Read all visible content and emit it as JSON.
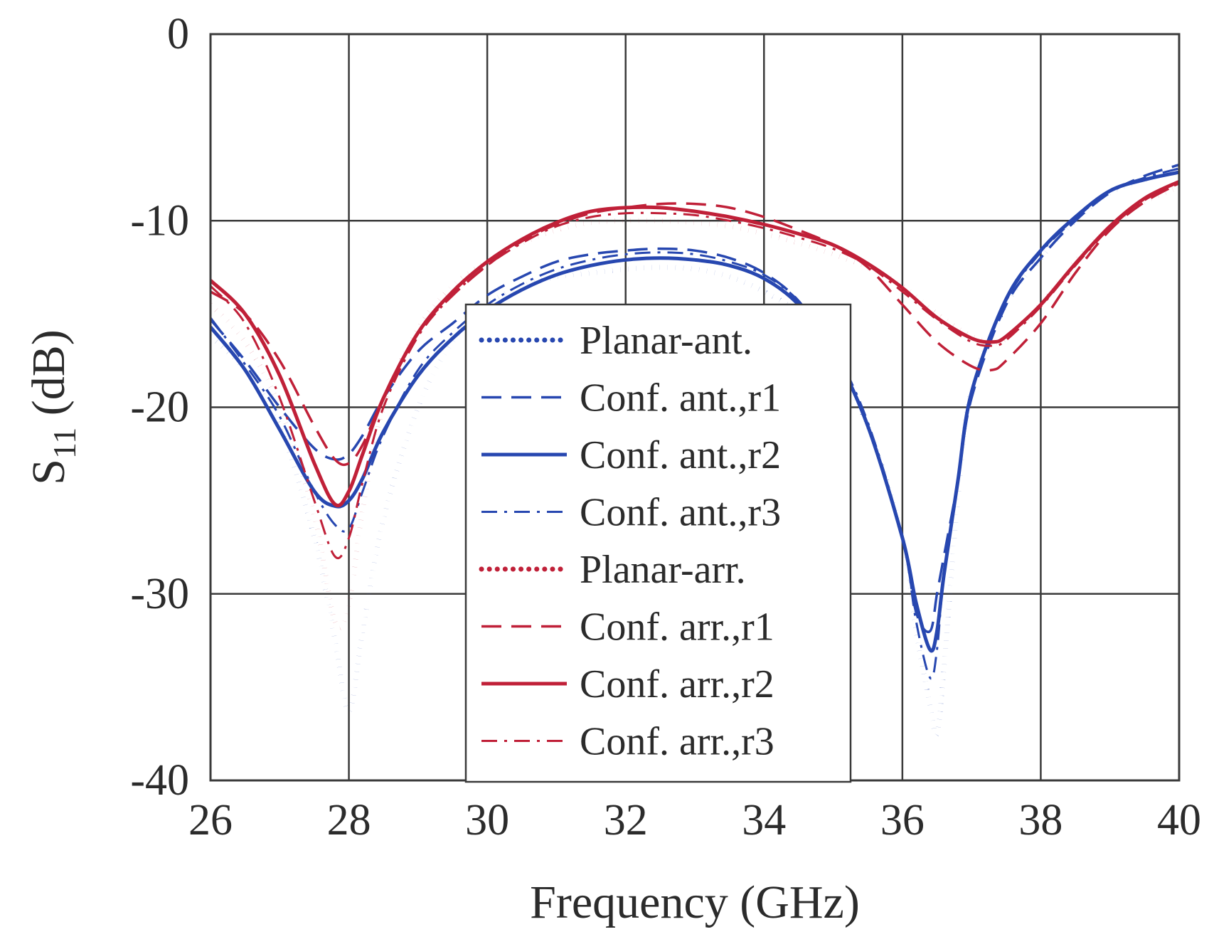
{
  "chart_data": {
    "type": "line",
    "title": "",
    "xlabel": "Frequency (GHz)",
    "ylabel": {
      "main": "S",
      "sub": "11",
      "unit": " (dB)"
    },
    "xlim": [
      26,
      40
    ],
    "ylim": [
      -40,
      0
    ],
    "xticks": [
      26,
      28,
      30,
      32,
      34,
      36,
      38,
      40
    ],
    "yticks": [
      0,
      -10,
      -20,
      -30,
      -40
    ],
    "ytick_labels": [
      "0",
      "-10",
      "-20",
      "-30",
      "-40"
    ],
    "grid": true,
    "legend_position": "center",
    "colors": {
      "blue": "#2747b0",
      "red": "#c02038"
    },
    "series": [
      {
        "name": "Planar-ant.",
        "color": "#2747b0",
        "dash": "dotted",
        "x": [
          26,
          26.5,
          27,
          27.5,
          27.8,
          28,
          28.2,
          28.5,
          29,
          29.5,
          30,
          30.5,
          31,
          31.5,
          32,
          32.5,
          33,
          33.5,
          34,
          34.5,
          35,
          35.5,
          36,
          36.2,
          36.4,
          36.5,
          36.6,
          36.8,
          37,
          37.5,
          38,
          38.5,
          39,
          39.5,
          40
        ],
        "y": [
          -16.2,
          -18,
          -21,
          -27,
          -32.5,
          -36.3,
          -32,
          -26,
          -20,
          -16.5,
          -14.5,
          -13.5,
          -13,
          -12.8,
          -12.6,
          -12.5,
          -12.6,
          -13,
          -13.8,
          -15,
          -17.5,
          -21,
          -27,
          -32,
          -36,
          -37.5,
          -34,
          -25,
          -19,
          -14.5,
          -12,
          -10,
          -8.5,
          -7.8,
          -7.3
        ]
      },
      {
        "name": "Conf. ant.,r1",
        "color": "#2747b0",
        "dash": "dashed",
        "x": [
          26,
          26.5,
          27,
          27.5,
          27.8,
          28,
          28.2,
          28.5,
          29,
          29.5,
          30,
          30.5,
          31,
          31.5,
          32,
          32.5,
          33,
          33.5,
          34,
          34.5,
          35,
          35.5,
          36,
          36.2,
          36.4,
          36.5,
          36.6,
          36.8,
          37,
          37.5,
          38,
          38.5,
          39,
          39.5,
          40
        ],
        "y": [
          -15.3,
          -17.5,
          -20,
          -22.2,
          -22.8,
          -22.5,
          -21.5,
          -19.5,
          -17,
          -15.5,
          -14,
          -13,
          -12.2,
          -11.8,
          -11.6,
          -11.5,
          -11.6,
          -12,
          -12.8,
          -14.3,
          -17,
          -21,
          -27,
          -31,
          -32,
          -30,
          -28,
          -24,
          -19.5,
          -14.5,
          -12,
          -10,
          -8.5,
          -7.6,
          -7
        ]
      },
      {
        "name": "Conf. ant.,r2",
        "color": "#2747b0",
        "dash": "solid",
        "x": [
          26,
          26.5,
          27,
          27.5,
          27.8,
          28,
          28.2,
          28.5,
          29,
          29.5,
          30,
          30.5,
          31,
          31.5,
          32,
          32.5,
          33,
          33.5,
          34,
          34.5,
          35,
          35.5,
          36,
          36.2,
          36.4,
          36.5,
          36.6,
          36.8,
          37,
          37.5,
          38,
          38.5,
          39,
          39.5,
          40
        ],
        "y": [
          -15.7,
          -18,
          -21.2,
          -24.5,
          -25.3,
          -25,
          -23.8,
          -21.3,
          -18.3,
          -16.3,
          -14.8,
          -13.7,
          -12.9,
          -12.4,
          -12.1,
          -12,
          -12.1,
          -12.4,
          -13.1,
          -14.5,
          -17,
          -21,
          -27,
          -30.5,
          -33,
          -32,
          -29,
          -24,
          -19.2,
          -14.2,
          -11.6,
          -9.8,
          -8.4,
          -7.8,
          -7.4
        ]
      },
      {
        "name": "Conf. ant.,r3",
        "color": "#2747b0",
        "dash": "dashdot",
        "x": [
          26,
          26.5,
          27,
          27.5,
          27.8,
          28,
          28.2,
          28.5,
          29,
          29.5,
          30,
          30.5,
          31,
          31.5,
          32,
          32.5,
          33,
          33.5,
          34,
          34.5,
          35,
          35.5,
          36,
          36.2,
          36.4,
          36.5,
          36.6,
          36.8,
          37,
          37.5,
          38,
          38.5,
          39,
          39.5,
          40
        ],
        "y": [
          -15.2,
          -17.7,
          -20.5,
          -24.5,
          -26.3,
          -26.5,
          -24.5,
          -21.5,
          -18,
          -16,
          -14.5,
          -13.4,
          -12.6,
          -12.1,
          -11.8,
          -11.7,
          -11.8,
          -12.2,
          -12.9,
          -14.3,
          -16.8,
          -20.8,
          -27,
          -31.5,
          -34.5,
          -33,
          -29,
          -24,
          -19.3,
          -14.3,
          -11.7,
          -9.9,
          -8.4,
          -7.7,
          -7.2
        ]
      },
      {
        "name": "Planar-arr.",
        "color": "#c02038",
        "dash": "dotted",
        "x": [
          26,
          26.5,
          27,
          27.5,
          27.8,
          28,
          28.2,
          28.5,
          29,
          29.5,
          30,
          30.5,
          31,
          31.5,
          32,
          32.5,
          33,
          33.5,
          34,
          34.5,
          35,
          35.5,
          36,
          36.5,
          37,
          37.3,
          37.5,
          38,
          38.5,
          39,
          39.5,
          40
        ],
        "y": [
          -14.5,
          -16.5,
          -20,
          -25.8,
          -31.5,
          -30.5,
          -25.5,
          -20,
          -15.8,
          -13.5,
          -12.2,
          -11.2,
          -10.5,
          -10.1,
          -10,
          -10,
          -10.1,
          -10.3,
          -10.7,
          -11.2,
          -11.8,
          -12.5,
          -13.5,
          -15,
          -16.2,
          -16.5,
          -16.3,
          -14.5,
          -12.2,
          -10.3,
          -9,
          -8.2
        ]
      },
      {
        "name": "Conf. arr.,r1",
        "color": "#c02038",
        "dash": "dashed",
        "x": [
          26,
          26.5,
          27,
          27.5,
          27.8,
          28,
          28.2,
          28.5,
          29,
          29.5,
          30,
          30.5,
          31,
          31.5,
          32,
          32.5,
          33,
          33.5,
          34,
          34.5,
          35,
          35.5,
          36,
          36.5,
          37,
          37.3,
          37.5,
          38,
          38.5,
          39,
          39.5,
          40
        ],
        "y": [
          -13.8,
          -15,
          -17.5,
          -21,
          -22.8,
          -23,
          -22,
          -19.5,
          -16,
          -14,
          -12.4,
          -11.1,
          -10.2,
          -9.6,
          -9.3,
          -9.1,
          -9.1,
          -9.3,
          -9.8,
          -10.5,
          -11.3,
          -12.5,
          -14.5,
          -16.5,
          -17.8,
          -18,
          -17.5,
          -15.5,
          -12.8,
          -10.5,
          -9,
          -8
        ]
      },
      {
        "name": "Conf. arr.,r2",
        "color": "#c02038",
        "dash": "solid",
        "x": [
          26,
          26.5,
          27,
          27.5,
          27.8,
          28,
          28.2,
          28.5,
          29,
          29.5,
          30,
          30.5,
          31,
          31.5,
          32,
          32.5,
          33,
          33.5,
          34,
          34.5,
          35,
          35.5,
          36,
          36.5,
          37,
          37.3,
          37.5,
          38,
          38.5,
          39,
          39.5,
          40
        ],
        "y": [
          -13.2,
          -15,
          -18.3,
          -23,
          -25.2,
          -24.5,
          -22.5,
          -19.5,
          -16,
          -13.8,
          -12.2,
          -11,
          -10.1,
          -9.5,
          -9.3,
          -9.3,
          -9.5,
          -9.8,
          -10.2,
          -10.7,
          -11.3,
          -12.3,
          -13.6,
          -15.2,
          -16.3,
          -16.5,
          -16.2,
          -14.5,
          -12.3,
          -10.3,
          -8.8,
          -7.9
        ]
      },
      {
        "name": "Conf. arr.,r3",
        "color": "#c02038",
        "dash": "dashdot",
        "x": [
          26,
          26.5,
          27,
          27.5,
          27.8,
          28,
          28.2,
          28.5,
          29,
          29.5,
          30,
          30.5,
          31,
          31.5,
          32,
          32.5,
          33,
          33.5,
          34,
          34.5,
          35,
          35.5,
          36,
          36.5,
          37,
          37.3,
          37.5,
          38,
          38.5,
          39,
          39.5,
          40
        ],
        "y": [
          -13.5,
          -15.5,
          -19.5,
          -25,
          -28,
          -27,
          -24,
          -20,
          -16.2,
          -14,
          -12.4,
          -11.2,
          -10.3,
          -9.8,
          -9.6,
          -9.6,
          -9.7,
          -10,
          -10.4,
          -10.9,
          -11.5,
          -12.4,
          -13.8,
          -15.3,
          -16.5,
          -16.7,
          -16.4,
          -14.6,
          -12.4,
          -10.4,
          -8.9,
          -8
        ]
      }
    ]
  }
}
